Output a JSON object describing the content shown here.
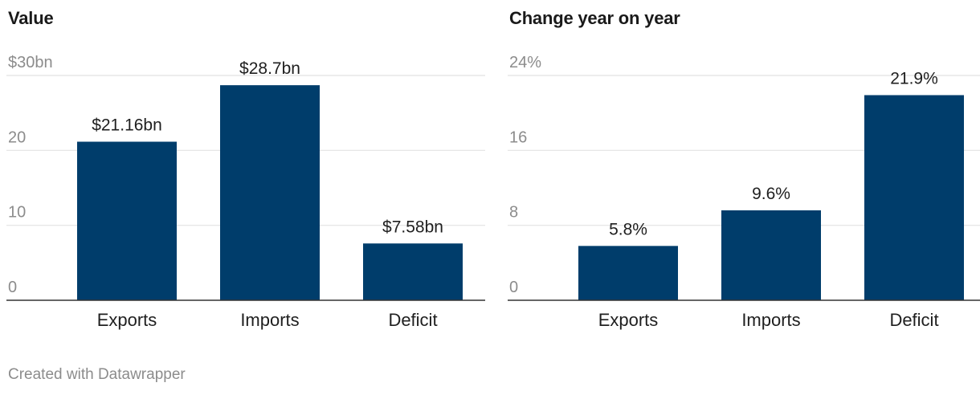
{
  "chart_data": [
    {
      "type": "bar",
      "title": "Value",
      "categories": [
        "Exports",
        "Imports",
        "Deficit"
      ],
      "values": [
        21.16,
        28.7,
        7.58
      ],
      "data_labels": [
        "$21.16bn",
        "$28.7bn",
        "$7.58bn"
      ],
      "yticks": [
        0,
        10,
        20,
        30
      ],
      "ytick_labels": [
        "0",
        "10",
        "20",
        "$30bn"
      ],
      "ylim": [
        0,
        30
      ],
      "grid": true,
      "color": "#003d6b"
    },
    {
      "type": "bar",
      "title": "Change year on year",
      "categories": [
        "Exports",
        "Imports",
        "Deficit"
      ],
      "values": [
        5.8,
        9.6,
        21.9
      ],
      "data_labels": [
        "5.8%",
        "9.6%",
        "21.9%"
      ],
      "yticks": [
        0,
        8,
        16,
        24
      ],
      "ytick_labels": [
        "0",
        "8",
        "16",
        "24%"
      ],
      "ylim": [
        0,
        24
      ],
      "grid": true,
      "color": "#003d6b"
    }
  ],
  "footer": {
    "credit": "Created with Datawrapper"
  }
}
